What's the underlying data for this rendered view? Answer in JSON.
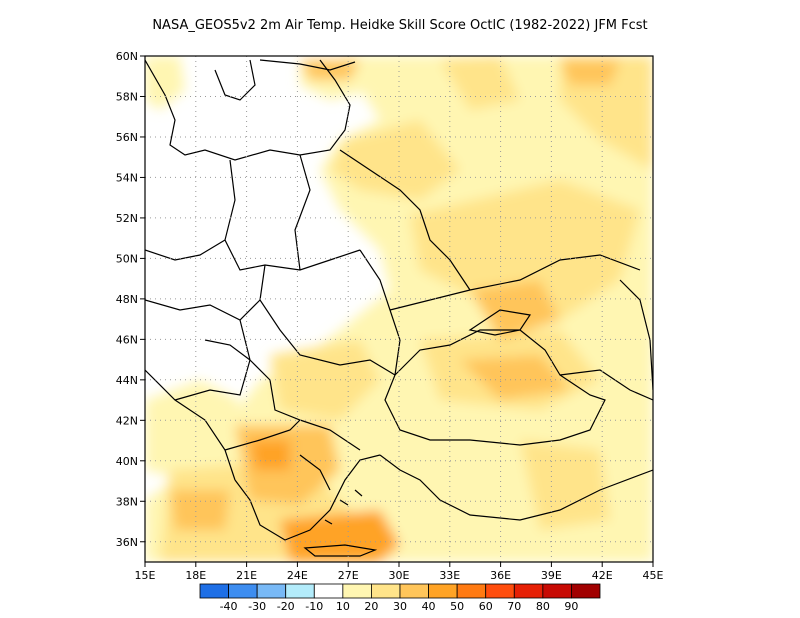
{
  "title": "NASA_GEOS5v2  2m Air Temp. Heidke Skill Score OctlC (1982-2022) JFM Fcst",
  "map": {
    "projection": "lat-lon",
    "lon_range": [
      15,
      45
    ],
    "lat_range": [
      35,
      60
    ],
    "lon_ticks": [
      "15E",
      "18E",
      "21E",
      "24E",
      "27E",
      "30E",
      "33E",
      "36E",
      "39E",
      "42E",
      "45E"
    ],
    "lat_ticks": [
      "60N",
      "58N",
      "56N",
      "54N",
      "52N",
      "50N",
      "48N",
      "46N",
      "44N",
      "42N",
      "40N",
      "38N",
      "36N"
    ],
    "grid": "dotted",
    "skill_regions": [
      {
        "name": "southern Greece / Aegean",
        "level": "40-50"
      },
      {
        "name": "northern Greece",
        "level": "30-40"
      },
      {
        "name": "Black Sea / Crimea",
        "level": "30-40"
      },
      {
        "name": "eastern Ukraine / southern Russia",
        "level": "20-40"
      },
      {
        "name": "Baltic / Poland / Czechia / Slovakia / Hungary / Austria",
        "level": "below 10"
      }
    ]
  },
  "colorbar": {
    "colors": [
      "#1e6fe6",
      "#3d8df0",
      "#78b9f6",
      "#b3ecfb",
      "#ffffff",
      "#fff6b2",
      "#ffe48a",
      "#ffc55a",
      "#ffa325",
      "#ff7a12",
      "#ff4d0d",
      "#e62005",
      "#c70a03",
      "#a10000"
    ],
    "labels": [
      "-40",
      "-30",
      "-20",
      "-10",
      "10",
      "20",
      "30",
      "40",
      "50",
      "60",
      "70",
      "80",
      "90"
    ]
  }
}
